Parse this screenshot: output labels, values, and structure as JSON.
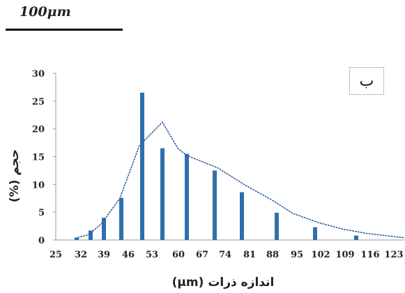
{
  "scale": {
    "label": "100μm"
  },
  "panel_label": "ب",
  "chart_data": {
    "type": "bar",
    "categories": [
      "25",
      "32",
      "35",
      "39",
      "46",
      "53",
      "60",
      "67",
      "74",
      "81",
      "88",
      "95",
      "102",
      "109",
      "116",
      "123"
    ],
    "values": [
      0,
      0.4,
      1.7,
      4.0,
      7.6,
      26.5,
      16.5,
      15.5,
      12.5,
      8.6,
      4.9,
      0,
      2.3,
      0.8,
      0,
      0
    ],
    "fit_line": {
      "style": "dotted",
      "x": [
        "32",
        "35",
        "39",
        "46",
        "53",
        "56",
        "60",
        "67",
        "74",
        "81",
        "88",
        "95",
        "102",
        "109",
        "116",
        "123"
      ],
      "y": [
        0.3,
        1.0,
        3.0,
        7.5,
        17.0,
        21.2,
        16.5,
        15.2,
        13.0,
        10.0,
        7.2,
        4.8,
        3.2,
        2.0,
        1.2,
        0.4
      ]
    },
    "yticks": [
      "0",
      "5",
      "10",
      "15",
      "20",
      "25",
      "30"
    ],
    "xticks": [
      "25",
      "32",
      "39",
      "46",
      "53",
      "60",
      "67",
      "74",
      "81",
      "88",
      "95",
      "102",
      "109",
      "116",
      "123"
    ],
    "xlabel": "اندازه ذرات (μm)",
    "ylabel": "حجم (%)",
    "ylim": [
      0,
      30
    ],
    "colors": {
      "bar": "#2e6fad",
      "line": "#2e5f9e",
      "axis": "#999999"
    }
  }
}
